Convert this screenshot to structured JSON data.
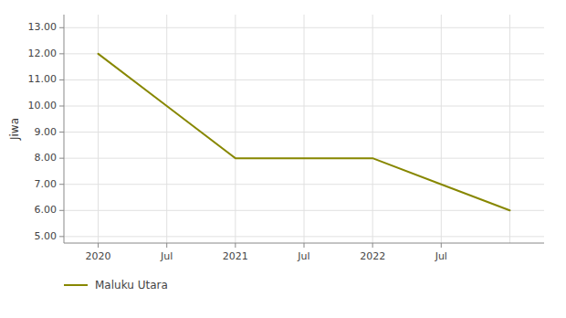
{
  "chart_data": {
    "type": "line",
    "ylabel": "Jiwa",
    "categories": [
      "2020",
      "Jul",
      "2021",
      "Jul",
      "2022",
      "Jul",
      null
    ],
    "series": [
      {
        "name": "Maluku Utara",
        "color": "#878700",
        "values": [
          12,
          10,
          8,
          8,
          8,
          7,
          6
        ]
      }
    ],
    "ylim": [
      4.75,
      13.5
    ],
    "yticks": [
      {
        "value": 5,
        "label": "5.00"
      },
      {
        "value": 6,
        "label": "6.00"
      },
      {
        "value": 7,
        "label": "7.00"
      },
      {
        "value": 8,
        "label": "8.00"
      },
      {
        "value": 9,
        "label": "9.00"
      },
      {
        "value": 10,
        "label": "10.00"
      },
      {
        "value": 11,
        "label": "11.00"
      },
      {
        "value": 12,
        "label": "12.00"
      },
      {
        "value": 13,
        "label": "13.00"
      }
    ],
    "grid": true,
    "legend": "lower left"
  }
}
